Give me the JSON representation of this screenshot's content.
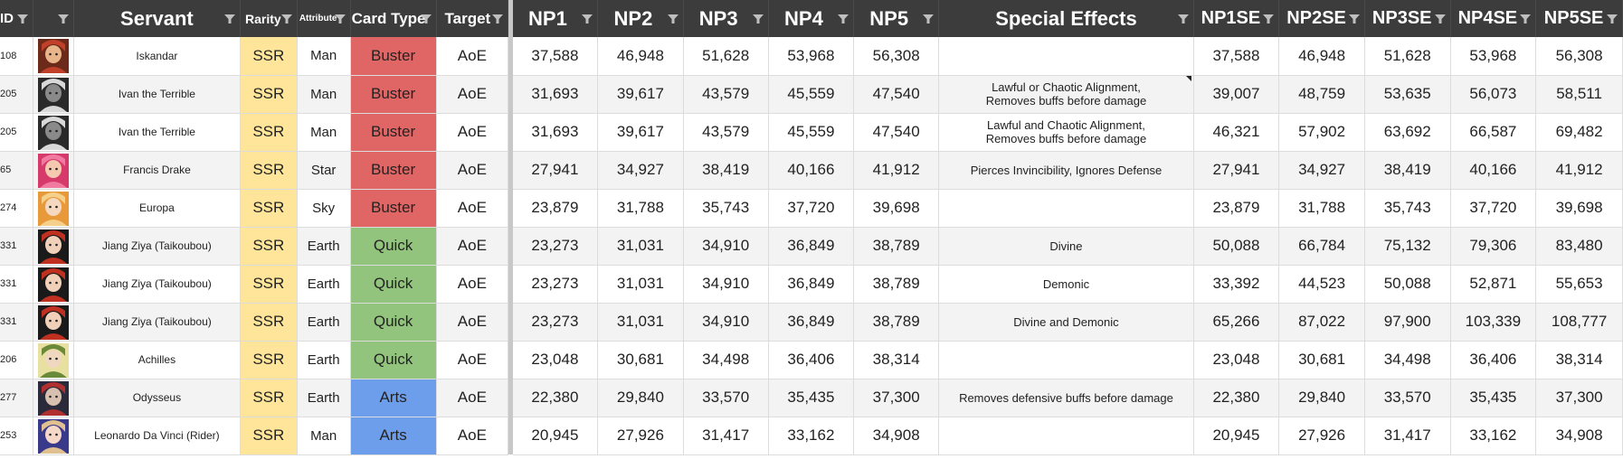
{
  "headers": {
    "id": "ID",
    "servant": "Servant",
    "rarity": "Rarity",
    "attribute": "Attribute",
    "card_type": "Card Type",
    "target": "Target",
    "np1": "NP1",
    "np2": "NP2",
    "np3": "NP3",
    "np4": "NP4",
    "np5": "NP5",
    "special_effects": "Special Effects",
    "np1se": "NP1SE",
    "np2se": "NP2SE",
    "np3se": "NP3SE",
    "np4se": "NP4SE",
    "np5se": "NP5SE"
  },
  "colors": {
    "header_bg": "#3c3c3c",
    "rarity_bg": "#ffe599",
    "buster": "#e06666",
    "quick": "#93c47d",
    "arts": "#6d9eeb"
  },
  "icons": {
    "filter": "filter-icon",
    "portrait": "servant-portrait-icon"
  },
  "rows": [
    {
      "id": "108",
      "servant": "Iskandar",
      "rarity": "SSR",
      "attribute": "Man",
      "card_type": "Buster",
      "target": "AoE",
      "np1": "37,588",
      "np2": "46,948",
      "np3": "51,628",
      "np4": "53,968",
      "np5": "56,308",
      "effects": "",
      "np1se": "37,588",
      "np2se": "46,948",
      "np3se": "51,628",
      "np4se": "53,968",
      "np5se": "56,308",
      "portrait_palette": [
        "#6b2a1a",
        "#c0402a",
        "#e8b48a"
      ]
    },
    {
      "id": "205",
      "servant": "Ivan the Terrible",
      "rarity": "SSR",
      "attribute": "Man",
      "card_type": "Buster",
      "target": "AoE",
      "np1": "31,693",
      "np2": "39,617",
      "np3": "43,579",
      "np4": "45,559",
      "np5": "47,540",
      "effects": "Lawful or Chaotic Alignment,\nRemoves buffs before damage",
      "np1se": "39,007",
      "np2se": "48,759",
      "np3se": "53,635",
      "np4se": "56,073",
      "np5se": "58,511",
      "portrait_palette": [
        "#2a2a2a",
        "#d8d8d8",
        "#8a8a8a"
      ]
    },
    {
      "id": "205",
      "servant": "Ivan the Terrible",
      "rarity": "SSR",
      "attribute": "Man",
      "card_type": "Buster",
      "target": "AoE",
      "np1": "31,693",
      "np2": "39,617",
      "np3": "43,579",
      "np4": "45,559",
      "np5": "47,540",
      "effects": "Lawful and Chaotic Alignment,\nRemoves buffs before damage",
      "np1se": "46,321",
      "np2se": "57,902",
      "np3se": "63,692",
      "np4se": "66,587",
      "np5se": "69,482",
      "portrait_palette": [
        "#2a2a2a",
        "#d8d8d8",
        "#8a8a8a"
      ]
    },
    {
      "id": "65",
      "servant": "Francis Drake",
      "rarity": "SSR",
      "attribute": "Star",
      "card_type": "Buster",
      "target": "AoE",
      "np1": "27,941",
      "np2": "34,927",
      "np3": "38,419",
      "np4": "40,166",
      "np5": "41,912",
      "effects": "Pierces Invincibility, Ignores Defense",
      "np1se": "27,941",
      "np2se": "34,927",
      "np3se": "38,419",
      "np4se": "40,166",
      "np5se": "41,912",
      "portrait_palette": [
        "#d63a6a",
        "#f07aa0",
        "#f5c8b0"
      ]
    },
    {
      "id": "274",
      "servant": "Europa",
      "rarity": "SSR",
      "attribute": "Sky",
      "card_type": "Buster",
      "target": "AoE",
      "np1": "23,879",
      "np2": "31,788",
      "np3": "35,743",
      "np4": "37,720",
      "np5": "39,698",
      "effects": "",
      "np1se": "23,879",
      "np2se": "31,788",
      "np3se": "35,743",
      "np4se": "37,720",
      "np5se": "39,698",
      "portrait_palette": [
        "#e89a3a",
        "#f5d08a",
        "#f5d8c0"
      ]
    },
    {
      "id": "331",
      "servant": "Jiang Ziya (Taikoubou)",
      "rarity": "SSR",
      "attribute": "Earth",
      "card_type": "Quick",
      "target": "AoE",
      "np1": "23,273",
      "np2": "31,031",
      "np3": "34,910",
      "np4": "36,849",
      "np5": "38,789",
      "effects": "Divine",
      "np1se": "50,088",
      "np2se": "66,784",
      "np3se": "75,132",
      "np4se": "79,306",
      "np5se": "83,480",
      "portrait_palette": [
        "#1a1a1a",
        "#c03020",
        "#f0d0b8"
      ]
    },
    {
      "id": "331",
      "servant": "Jiang Ziya (Taikoubou)",
      "rarity": "SSR",
      "attribute": "Earth",
      "card_type": "Quick",
      "target": "AoE",
      "np1": "23,273",
      "np2": "31,031",
      "np3": "34,910",
      "np4": "36,849",
      "np5": "38,789",
      "effects": "Demonic",
      "np1se": "33,392",
      "np2se": "44,523",
      "np3se": "50,088",
      "np4se": "52,871",
      "np5se": "55,653",
      "portrait_palette": [
        "#1a1a1a",
        "#c03020",
        "#f0d0b8"
      ]
    },
    {
      "id": "331",
      "servant": "Jiang Ziya (Taikoubou)",
      "rarity": "SSR",
      "attribute": "Earth",
      "card_type": "Quick",
      "target": "AoE",
      "np1": "23,273",
      "np2": "31,031",
      "np3": "34,910",
      "np4": "36,849",
      "np5": "38,789",
      "effects": "Divine and Demonic",
      "np1se": "65,266",
      "np2se": "87,022",
      "np3se": "97,900",
      "np4se": "103,339",
      "np5se": "108,777",
      "portrait_palette": [
        "#1a1a1a",
        "#c03020",
        "#f0d0b8"
      ]
    },
    {
      "id": "206",
      "servant": "Achilles",
      "rarity": "SSR",
      "attribute": "Earth",
      "card_type": "Quick",
      "target": "AoE",
      "np1": "23,048",
      "np2": "30,681",
      "np3": "34,498",
      "np4": "36,406",
      "np5": "38,314",
      "effects": "",
      "np1se": "23,048",
      "np2se": "30,681",
      "np3se": "34,498",
      "np4se": "36,406",
      "np5se": "38,314",
      "portrait_palette": [
        "#e8e0a0",
        "#6a8a3a",
        "#f0d8c0"
      ]
    },
    {
      "id": "277",
      "servant": "Odysseus",
      "rarity": "SSR",
      "attribute": "Earth",
      "card_type": "Arts",
      "target": "AoE",
      "np1": "22,380",
      "np2": "29,840",
      "np3": "33,570",
      "np4": "35,435",
      "np5": "37,300",
      "effects": "Removes defensive buffs before damage",
      "np1se": "22,380",
      "np2se": "29,840",
      "np3se": "33,570",
      "np4se": "35,435",
      "np5se": "37,300",
      "portrait_palette": [
        "#2a2a3a",
        "#b03030",
        "#d8c0b0"
      ]
    },
    {
      "id": "253",
      "servant": "Leonardo Da Vinci (Rider)",
      "rarity": "SSR",
      "attribute": "Man",
      "card_type": "Arts",
      "target": "AoE",
      "np1": "20,945",
      "np2": "27,926",
      "np3": "31,417",
      "np4": "33,162",
      "np5": "34,908",
      "effects": "",
      "np1se": "20,945",
      "np2se": "27,926",
      "np3se": "31,417",
      "np4se": "33,162",
      "np5se": "34,908",
      "portrait_palette": [
        "#3a3a8a",
        "#e0c090",
        "#f5d8c8"
      ]
    }
  ]
}
